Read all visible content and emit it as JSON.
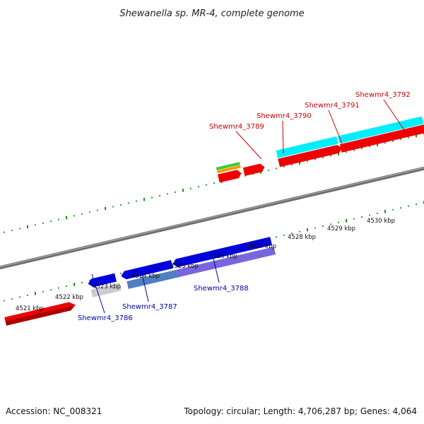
{
  "title": "Shewanella sp. MR-4, complete genome",
  "footer": {
    "accession": "Accession: NC_008321",
    "topology": "Topology: circular; Length: 4,706,287 bp; Genes: 4,064"
  },
  "ticks": [
    {
      "label": "4521 kbp"
    },
    {
      "label": "4522 kbp"
    },
    {
      "label": "4523 kbp"
    },
    {
      "label": "4524 kbp"
    },
    {
      "label": "4525 kbp"
    },
    {
      "label": "4526 kbp"
    },
    {
      "label": "4527 kbp"
    },
    {
      "label": "4528 kbp"
    },
    {
      "label": "4529 kbp"
    },
    {
      "label": "4530 kbp"
    }
  ],
  "forward_labels": [
    {
      "text": "Shewmr4_3789"
    },
    {
      "text": "Shewmr4_3790"
    },
    {
      "text": "Shewmr4_3791"
    },
    {
      "text": "Shewmr4_3792"
    }
  ],
  "reverse_labels": [
    {
      "text": "Shewmr4_3786"
    },
    {
      "text": "Shewmr4_3787"
    },
    {
      "text": "Shewmr4_3788"
    }
  ],
  "colors": {
    "forward_cds": "#ee0000",
    "reverse_cds": "#0000dd",
    "backbone": "#888888",
    "ticks": "#008800",
    "cyan_feature": "#00eeff",
    "green_feature": "#33cc33",
    "orange_feature": "#ff9900",
    "gray_feature": "#cccccc",
    "steel_feature": "#4f7fbf",
    "purple_feature": "#7766dd"
  }
}
